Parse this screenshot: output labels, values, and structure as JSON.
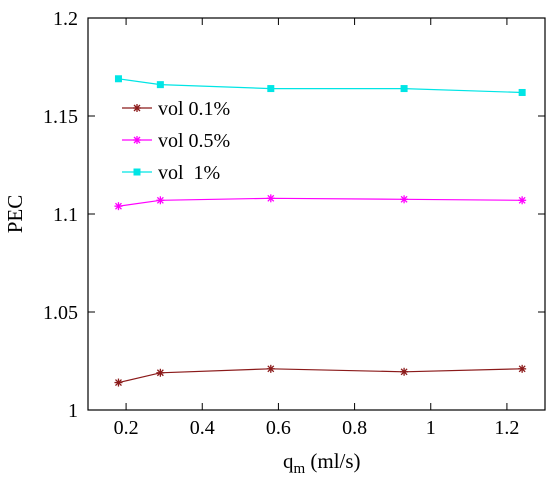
{
  "chart_data": {
    "type": "line",
    "xlabel": "q",
    "xlabel_sub": "m",
    "xlabel_unit": " (ml/s)",
    "ylabel": "PEC",
    "xlim": [
      0.1,
      1.3
    ],
    "ylim": [
      1.0,
      1.2
    ],
    "xticks": [
      0.2,
      0.4,
      0.6,
      0.8,
      1.0,
      1.2
    ],
    "xtick_labels": [
      "0.2",
      "0.4",
      "0.6",
      "0.8",
      "1",
      "1.2"
    ],
    "yticks": [
      1.0,
      1.05,
      1.1,
      1.15,
      1.2
    ],
    "ytick_labels": [
      "1",
      "1.05",
      "1.1",
      "1.15",
      "1.2"
    ],
    "grid": false,
    "legend_position": "upper-left",
    "series": [
      {
        "name": "vol 0.1%",
        "color": "#8b1a1a",
        "marker": "star",
        "x": [
          0.18,
          0.29,
          0.58,
          0.93,
          1.24
        ],
        "y": [
          1.014,
          1.019,
          1.021,
          1.0195,
          1.021
        ]
      },
      {
        "name": "vol 0.5%",
        "color": "#ff00ff",
        "marker": "star",
        "x": [
          0.18,
          0.29,
          0.58,
          0.93,
          1.24
        ],
        "y": [
          1.104,
          1.107,
          1.108,
          1.1075,
          1.107
        ]
      },
      {
        "name": "vol  1%",
        "color": "#00e5e5",
        "marker": "square",
        "x": [
          0.18,
          0.29,
          0.58,
          0.93,
          1.24
        ],
        "y": [
          1.169,
          1.166,
          1.164,
          1.164,
          1.162
        ]
      }
    ]
  }
}
